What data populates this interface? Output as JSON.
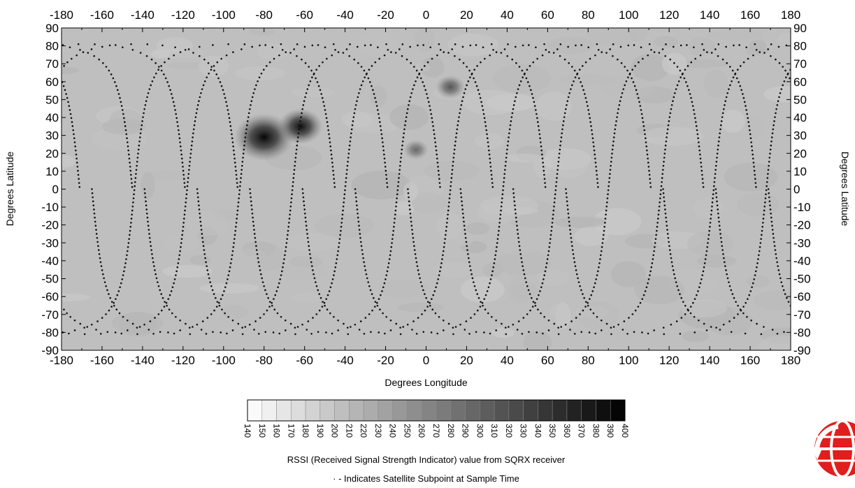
{
  "chart_data": {
    "type": "heatmap",
    "xlabel": "Degrees Longitude",
    "ylabel": "Degrees Latitude",
    "xlim": [
      -180,
      180
    ],
    "ylim": [
      -90,
      90
    ],
    "x_ticks": [
      -180,
      -160,
      -140,
      -120,
      -100,
      -80,
      -60,
      -40,
      -20,
      0,
      20,
      40,
      60,
      80,
      100,
      120,
      140,
      160,
      180
    ],
    "y_ticks": [
      90,
      80,
      70,
      60,
      50,
      40,
      30,
      20,
      10,
      0,
      -10,
      -20,
      -30,
      -40,
      -50,
      -60,
      -70,
      -80,
      -90
    ],
    "grid": false,
    "colorbar": {
      "levels": [
        140,
        150,
        160,
        170,
        180,
        190,
        200,
        210,
        220,
        230,
        240,
        250,
        260,
        270,
        280,
        290,
        300,
        310,
        320,
        330,
        340,
        350,
        360,
        370,
        380,
        390,
        400
      ],
      "label_orientation": "rotated-90",
      "color_low": "#ffffff",
      "color_high": "#000000"
    },
    "colorbar_caption": "RSSI (Received Signal Strength Indicator) value from SQRX receiver",
    "track_legend": "· - Indicates Satellite Subpoint at Sample Time",
    "background_rssi_range": [
      190,
      220
    ],
    "hotspots": [
      {
        "lon": -80,
        "lat": 29,
        "rssi": 400
      },
      {
        "lon": -62,
        "lat": 35,
        "rssi": 330
      },
      {
        "lon": 12,
        "lat": 57,
        "rssi": 260
      },
      {
        "lon": -5,
        "lat": 22,
        "rssi": 240
      }
    ],
    "satellite_ground_tracks": {
      "inclination_deg": 81,
      "ascending_node_longitudes": [
        -144,
        -118,
        -92,
        -66,
        -40,
        -14,
        12,
        38,
        64,
        90,
        116,
        142,
        168
      ],
      "descending_branch_offset_deg": 180
    }
  },
  "logo": {
    "name": "red-globe-logo-icon",
    "color": "#e21d1d"
  }
}
